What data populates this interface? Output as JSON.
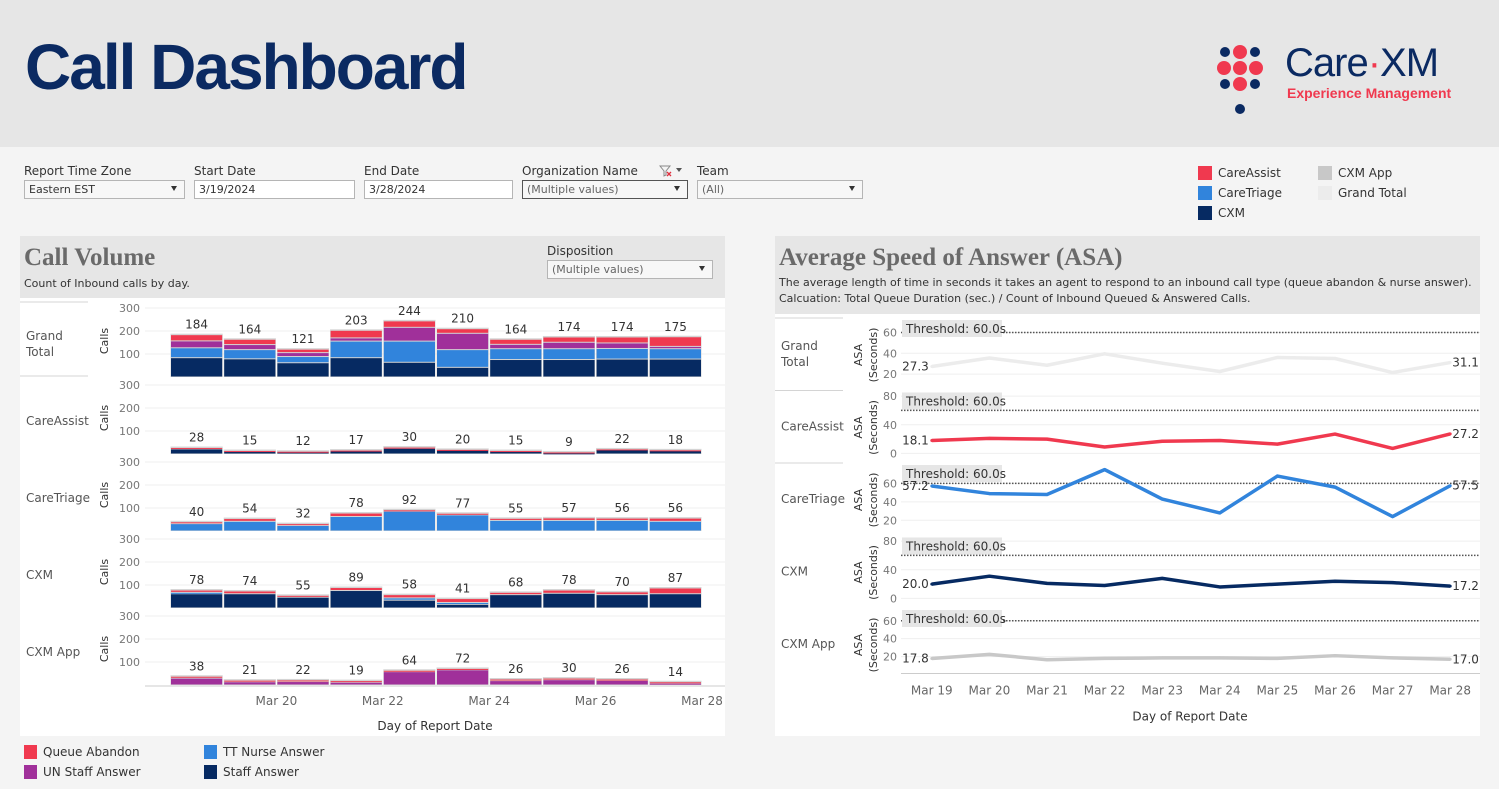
{
  "header": {
    "title": "Call Dashboard",
    "logo": {
      "brand_left": "Care",
      "brand_dot": "·",
      "brand_right": "XM",
      "tagline": "Experience Management"
    }
  },
  "filters": {
    "time_zone": {
      "label": "Report Time Zone",
      "value": "Eastern EST"
    },
    "start_date": {
      "label": "Start Date",
      "value": "3/19/2024"
    },
    "end_date": {
      "label": "End Date",
      "value": "3/28/2024"
    },
    "organization": {
      "label": "Organization Name",
      "value": "(Multiple values)"
    },
    "team": {
      "label": "Team",
      "value": "(All)"
    },
    "disposition": {
      "label": "Disposition",
      "value": "(Multiple values)"
    }
  },
  "org_legend": [
    {
      "label": "CareAssist",
      "color": "#f0394f"
    },
    {
      "label": "CareTriage",
      "color": "#3184dc"
    },
    {
      "label": "CXM",
      "color": "#062a62"
    },
    {
      "label": "CXM App",
      "color": "#c8c8c8"
    },
    {
      "label": "Grand Total",
      "color": "#ececec"
    }
  ],
  "call_volume": {
    "title": "Call Volume",
    "subtitle": "Count of Inbound calls by day."
  },
  "asa": {
    "title": "Average Speed of Answer (ASA)",
    "subtitle1": "The average length of time in seconds it takes an agent to respond to an inbound call type (queue abandon & nurse answer).",
    "subtitle2": "Calcuation: Total Queue Duration (sec.) / Count of Inbound Queued & Answered Calls."
  },
  "disposition_legend": [
    {
      "label": "Queue Abandon",
      "color": "#f0394f"
    },
    {
      "label": "UN Staff Answer",
      "color": "#a0309a"
    },
    {
      "label": "TT Nurse Answer",
      "color": "#3184dc"
    },
    {
      "label": "Staff Answer",
      "color": "#062a62"
    }
  ],
  "chart_data": [
    {
      "type": "bar",
      "stacked": true,
      "title": "Call Volume",
      "xlabel": "Day of Report Date",
      "ylabel": "Calls",
      "ylim": [
        0,
        300
      ],
      "yticks": [
        100,
        200,
        300
      ],
      "categories": [
        "Mar 19",
        "Mar 20",
        "Mar 21",
        "Mar 22",
        "Mar 23",
        "Mar 24",
        "Mar 25",
        "Mar 26",
        "Mar 27",
        "Mar 28"
      ],
      "xtick_labels": [
        "Mar 20",
        "Mar 22",
        "Mar 24",
        "Mar 26",
        "Mar 28"
      ],
      "series_order": [
        "Staff Answer",
        "TT Nurse Answer",
        "UN Staff Answer",
        "Queue Abandon"
      ],
      "panels": [
        {
          "name": "Grand Total",
          "totals": [
            184,
            164,
            121,
            203,
            244,
            210,
            164,
            174,
            174,
            175
          ],
          "series": [
            {
              "name": "Staff Answer",
              "values": [
                84,
                79,
                62,
                84,
                64,
                42,
                76,
                76,
                78,
                78
              ]
            },
            {
              "name": "TT Nurse Answer",
              "values": [
                43,
                40,
                27,
                72,
                92,
                77,
                47,
                47,
                46,
                45
              ]
            },
            {
              "name": "UN Staff Answer",
              "values": [
                30,
                22,
                17,
                14,
                60,
                71,
                19,
                28,
                24,
                10
              ]
            },
            {
              "name": "Queue Abandon",
              "values": [
                27,
                23,
                15,
                33,
                28,
                20,
                22,
                23,
                26,
                42
              ]
            }
          ]
        },
        {
          "name": "CareAssist",
          "totals": [
            28,
            15,
            12,
            17,
            30,
            20,
            15,
            9,
            22,
            18
          ],
          "series": [
            {
              "name": "Staff Answer",
              "values": [
                22,
                13,
                11,
                13,
                25,
                19,
                13,
                5,
                20,
                16
              ]
            },
            {
              "name": "TT Nurse Answer",
              "values": [
                0,
                0,
                0,
                0,
                0,
                0,
                0,
                0,
                0,
                0
              ]
            },
            {
              "name": "UN Staff Answer",
              "values": [
                0,
                0,
                0,
                0,
                0,
                0,
                0,
                0,
                0,
                0
              ]
            },
            {
              "name": "Queue Abandon",
              "values": [
                6,
                2,
                1,
                4,
                5,
                1,
                2,
                4,
                2,
                2
              ]
            }
          ]
        },
        {
          "name": "CareTriage",
          "totals": [
            40,
            54,
            32,
            78,
            92,
            77,
            55,
            57,
            56,
            56
          ],
          "series": [
            {
              "name": "Staff Answer",
              "values": [
                0,
                0,
                0,
                0,
                0,
                0,
                0,
                0,
                0,
                0
              ]
            },
            {
              "name": "TT Nurse Answer",
              "values": [
                32,
                42,
                24,
                63,
                86,
                70,
                46,
                46,
                46,
                42
              ]
            },
            {
              "name": "UN Staff Answer",
              "values": [
                0,
                0,
                0,
                0,
                0,
                0,
                0,
                0,
                0,
                0
              ]
            },
            {
              "name": "Queue Abandon",
              "values": [
                8,
                12,
                8,
                15,
                6,
                7,
                9,
                11,
                10,
                14
              ]
            }
          ]
        },
        {
          "name": "CXM",
          "totals": [
            78,
            74,
            55,
            89,
            58,
            41,
            68,
            78,
            70,
            87
          ],
          "series": [
            {
              "name": "Staff Answer",
              "values": [
                62,
                62,
                47,
                76,
                34,
                16,
                58,
                64,
                58,
                62
              ]
            },
            {
              "name": "TT Nurse Answer",
              "values": [
                6,
                0,
                0,
                0,
                10,
                8,
                0,
                0,
                0,
                0
              ]
            },
            {
              "name": "UN Staff Answer",
              "values": [
                0,
                0,
                0,
                0,
                0,
                0,
                0,
                0,
                0,
                0
              ]
            },
            {
              "name": "Queue Abandon",
              "values": [
                10,
                12,
                8,
                13,
                14,
                17,
                10,
                14,
                12,
                25
              ]
            }
          ]
        },
        {
          "name": "CXM App",
          "totals": [
            38,
            21,
            22,
            19,
            64,
            72,
            26,
            30,
            26,
            14
          ],
          "series": [
            {
              "name": "Staff Answer",
              "values": [
                0,
                0,
                0,
                0,
                0,
                0,
                0,
                0,
                0,
                0
              ]
            },
            {
              "name": "TT Nurse Answer",
              "values": [
                0,
                0,
                0,
                0,
                0,
                0,
                0,
                0,
                0,
                0
              ]
            },
            {
              "name": "UN Staff Answer",
              "values": [
                30,
                14,
                15,
                12,
                58,
                66,
                19,
                23,
                20,
                8
              ]
            },
            {
              "name": "Queue Abandon",
              "values": [
                8,
                7,
                7,
                7,
                6,
                6,
                7,
                7,
                6,
                6
              ]
            }
          ]
        }
      ]
    },
    {
      "type": "line",
      "title": "Average Speed of Answer (ASA)",
      "xlabel": "Day of Report Date",
      "ylabel": "ASA (Seconds)",
      "categories": [
        "Mar 19",
        "Mar 20",
        "Mar 21",
        "Mar 22",
        "Mar 23",
        "Mar 24",
        "Mar 25",
        "Mar 26",
        "Mar 27",
        "Mar 28"
      ],
      "threshold": {
        "value": 60,
        "label": "Threshold: 60.0s"
      },
      "panels": [
        {
          "name": "Grand Total",
          "color": "#ececec",
          "yticks": [
            20,
            40,
            60
          ],
          "ylim": [
            10,
            72
          ],
          "values": [
            27.3,
            35.5,
            28.5,
            39.5,
            30.5,
            22.5,
            36,
            35,
            21.5,
            31.1
          ],
          "first_label": "27.3",
          "last_label": "31.1"
        },
        {
          "name": "CareAssist",
          "color": "#f0394f",
          "yticks": [
            0,
            40,
            80
          ],
          "ylim": [
            -5,
            85
          ],
          "values": [
            18.1,
            21,
            20,
            9,
            17,
            18,
            13,
            27,
            7,
            27.2
          ],
          "first_label": "18.1",
          "last_label": "27.2"
        },
        {
          "name": "CareTriage",
          "color": "#3184dc",
          "yticks": [
            20,
            40,
            60
          ],
          "ylim": [
            10,
            80
          ],
          "values": [
            57.2,
            49,
            48,
            75,
            43,
            28,
            68,
            56,
            24,
            57.5
          ],
          "first_label": "57.2",
          "last_label": "57.5"
        },
        {
          "name": "CXM",
          "color": "#062a62",
          "yticks": [
            0,
            40,
            80
          ],
          "ylim": [
            -5,
            85
          ],
          "values": [
            20.0,
            31,
            21,
            18,
            28,
            16,
            20,
            24,
            22,
            17.2
          ],
          "first_label": "20.0",
          "last_label": "17.2"
        },
        {
          "name": "CXM App",
          "color": "#c8c8c8",
          "yticks": [
            20,
            40,
            60
          ],
          "ylim": [
            0,
            72
          ],
          "values": [
            17.8,
            22.5,
            16.5,
            18,
            18.5,
            18.5,
            18,
            21,
            18.5,
            17.0
          ],
          "first_label": "17.8",
          "last_label": "17.0"
        }
      ]
    }
  ]
}
